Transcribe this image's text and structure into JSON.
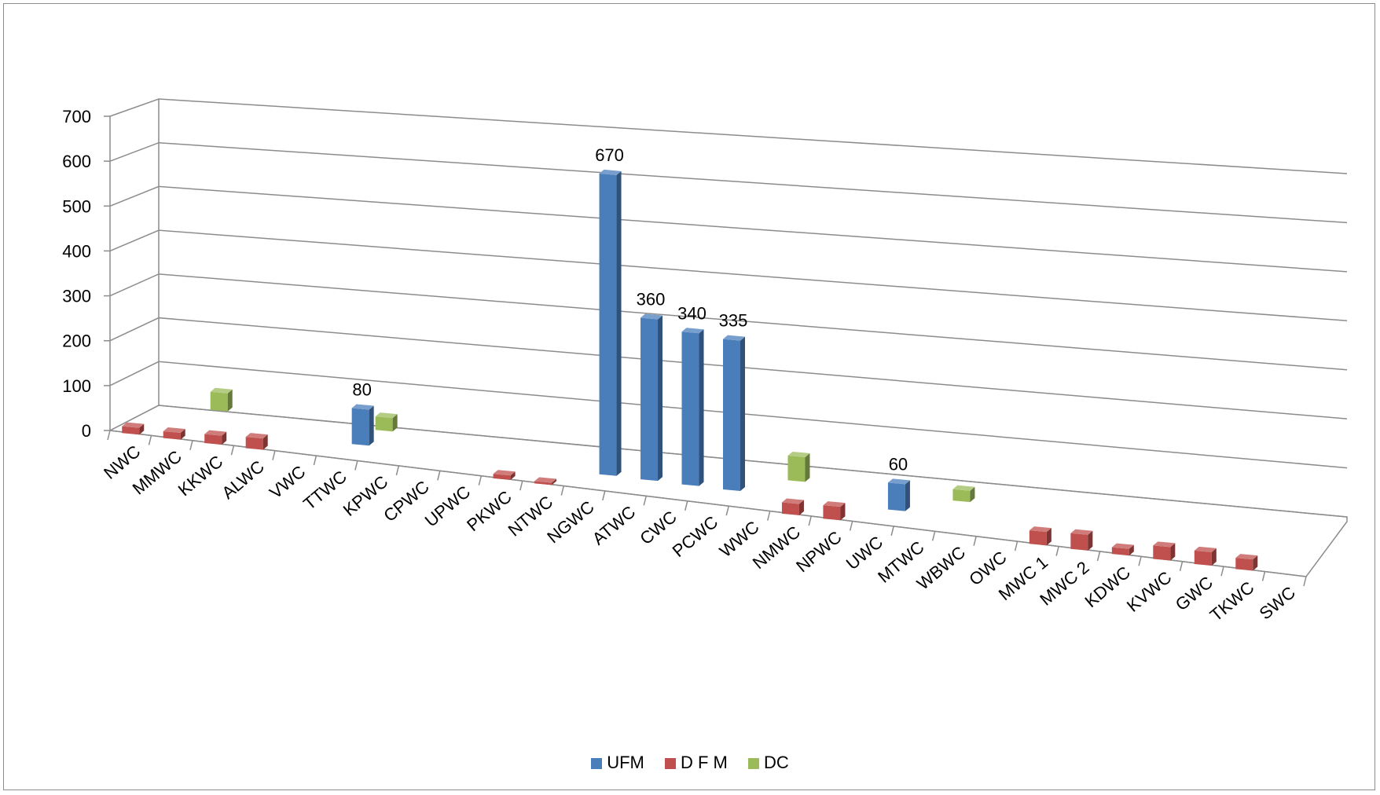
{
  "chart_data": {
    "type": "bar",
    "title": "",
    "xlabel": "",
    "ylabel": "",
    "ylim": [
      0,
      700
    ],
    "yticks": [
      0,
      100,
      200,
      300,
      400,
      500,
      600,
      700
    ],
    "grid": true,
    "legend_position": "bottom",
    "categories": [
      "NWC",
      "MMWC",
      "KKWC",
      "ALWC",
      "VWC",
      "TTWC",
      "KPWC",
      "CPWC",
      "UPWC",
      "PKWC",
      "NTWC",
      "NGWC",
      "ATWC",
      "CWC",
      "PCWC",
      "WWC",
      "NMWC",
      "NPWC",
      "UWC",
      "MTWC",
      "WBWC",
      "OWC",
      "MWC 1",
      "MWC 2",
      "KDWC",
      "KVWC",
      "GWC",
      "TKWC",
      "SWC"
    ],
    "series": [
      {
        "name": "UFM",
        "color": "#4a7ebb",
        "values": [
          null,
          null,
          null,
          null,
          null,
          80,
          null,
          null,
          null,
          null,
          null,
          670,
          360,
          340,
          335,
          null,
          null,
          null,
          60,
          null,
          null,
          null,
          null,
          null,
          null,
          null,
          null,
          null,
          null
        ]
      },
      {
        "name": "D F M",
        "color": "#c0504d",
        "values": [
          15,
          15,
          20,
          25,
          null,
          null,
          null,
          null,
          null,
          10,
          5,
          null,
          null,
          null,
          null,
          null,
          25,
          30,
          null,
          null,
          null,
          null,
          30,
          35,
          15,
          30,
          30,
          25,
          null
        ]
      },
      {
        "name": "DC",
        "color": "#9bbb59",
        "values": [
          null,
          40,
          null,
          null,
          null,
          30,
          null,
          null,
          null,
          null,
          null,
          null,
          null,
          null,
          null,
          55,
          null,
          null,
          null,
          25,
          null,
          null,
          null,
          null,
          null,
          null,
          null,
          null,
          null
        ]
      }
    ],
    "data_labels": [
      {
        "series": "UFM",
        "category": "TTWC",
        "text": "80"
      },
      {
        "series": "UFM",
        "category": "NGWC",
        "text": "670"
      },
      {
        "series": "UFM",
        "category": "ATWC",
        "text": "360"
      },
      {
        "series": "UFM",
        "category": "CWC",
        "text": "340"
      },
      {
        "series": "UFM",
        "category": "PCWC",
        "text": "335"
      },
      {
        "series": "UFM",
        "category": "UWC",
        "text": "60"
      }
    ]
  }
}
